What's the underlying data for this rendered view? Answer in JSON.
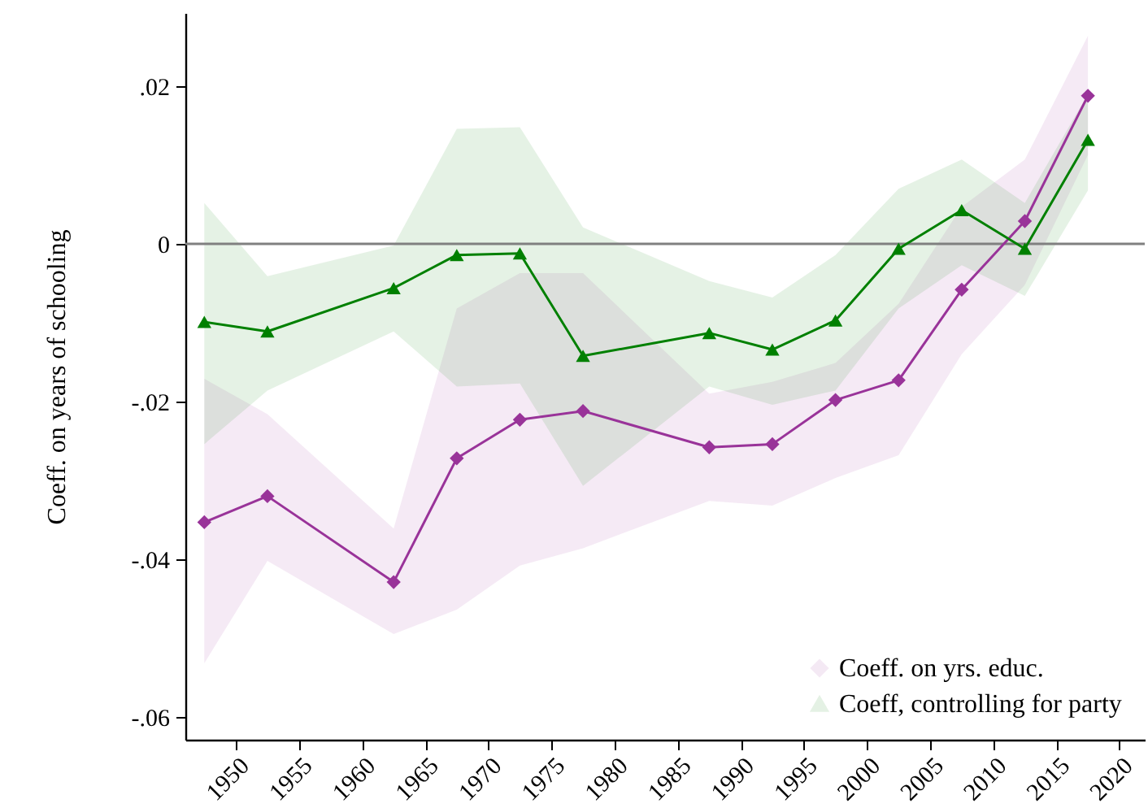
{
  "chart_data": {
    "type": "line",
    "ylabel": "Coeff. on years of schooling",
    "xlim": [
      1946,
      2022
    ],
    "xticks": [
      1950,
      1955,
      1960,
      1965,
      1970,
      1975,
      1980,
      1985,
      1990,
      1995,
      2000,
      2005,
      2010,
      2015,
      2020
    ],
    "ylim": [
      -0.0629,
      0.0293
    ],
    "yticks": [
      {
        "value": 0.02,
        "label": ".02"
      },
      0,
      {
        "value": -0.02,
        "label": "-.02"
      },
      {
        "value": -0.04,
        "label": "-.04"
      },
      {
        "value": -0.06,
        "label": "-.06"
      }
    ],
    "x": [
      1947.5,
      1952.5,
      1962.5,
      1967.5,
      1972.5,
      1977.5,
      1987.5,
      1992.5,
      1997.5,
      2002.5,
      2007.5,
      2012.5,
      2017.5
    ],
    "series": [
      {
        "name": "Coeff. on yrs. educ.",
        "color": "#993399",
        "marker": "diamond",
        "values": [
          -0.0353,
          -0.032,
          -0.0429,
          -0.0272,
          -0.0223,
          -0.0212,
          -0.0258,
          -0.0254,
          -0.0198,
          -0.0173,
          -0.0058,
          0.0029,
          0.0188
        ],
        "lower": [
          -0.0532,
          -0.0402,
          -0.0495,
          -0.0464,
          -0.0408,
          -0.0386,
          -0.0326,
          -0.0332,
          -0.0297,
          -0.0268,
          -0.014,
          -0.0052,
          0.0113
        ],
        "upper": [
          -0.0171,
          -0.0216,
          -0.0361,
          -0.0082,
          -0.0037,
          -0.0037,
          -0.019,
          -0.0175,
          -0.0151,
          -0.0076,
          0.0047,
          0.0107,
          0.0264
        ]
      },
      {
        "name": "Coeff, controlling for party",
        "color": "#008000",
        "marker": "triangle",
        "values": [
          -0.0099,
          -0.0111,
          -0.0056,
          -0.0014,
          -0.0012,
          -0.0142,
          -0.0113,
          -0.0134,
          -0.0097,
          -0.0006,
          0.0043,
          -0.0006,
          0.0132
        ],
        "lower": [
          -0.0254,
          -0.0186,
          -0.0111,
          -0.0181,
          -0.0177,
          -0.0307,
          -0.0181,
          -0.0204,
          -0.0186,
          -0.0082,
          -0.0027,
          -0.0066,
          0.0068
        ],
        "upper": [
          0.0052,
          -0.0041,
          -0.0002,
          0.0146,
          0.0148,
          0.0021,
          -0.0047,
          -0.0068,
          -0.0014,
          0.007,
          0.0107,
          0.0052,
          0.019
        ]
      }
    ],
    "ref_lines": [
      {
        "axis": "y",
        "value": 0,
        "color": "#808080"
      }
    ],
    "legend": "bottom right",
    "grid": false,
    "line_style": "solid"
  }
}
